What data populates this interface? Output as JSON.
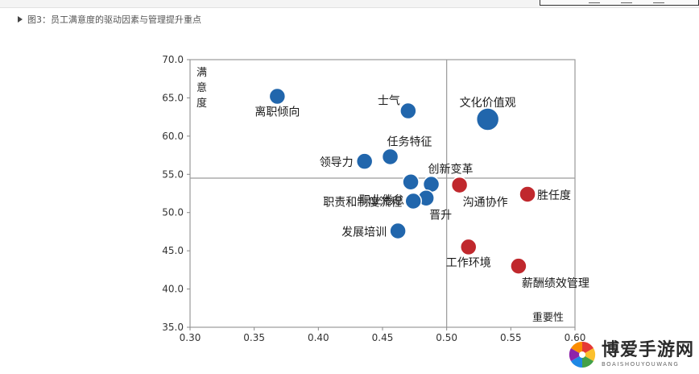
{
  "caption": "图3：员工满意度的驱动因素与管理提升重点",
  "watermark": {
    "title": "博爱手游网",
    "subtitle": "BOAISHOUYOUWANG"
  },
  "chart_data": {
    "type": "scatter",
    "title": "",
    "xlabel": "重要性",
    "ylabel": "满意度",
    "xlim": [
      0.3,
      0.6
    ],
    "ylim": [
      35.0,
      70.0
    ],
    "x_ticks": [
      "0.30",
      "0.35",
      "0.40",
      "0.45",
      "0.50",
      "0.55",
      "0.60"
    ],
    "y_ticks": [
      "35.0",
      "40.0",
      "45.0",
      "50.0",
      "55.0",
      "60.0",
      "65.0",
      "70.0"
    ],
    "reference_lines": {
      "x": 0.5,
      "y": 54.5
    },
    "grid": false,
    "colors": {
      "blue": "#2166ac",
      "red": "#c0282d"
    },
    "points": [
      {
        "label": "离职倾向",
        "x": 0.368,
        "y": 65.2,
        "size": 1.0,
        "color": "blue",
        "label_pos": "below"
      },
      {
        "label": "士气",
        "x": 0.47,
        "y": 63.3,
        "size": 1.0,
        "color": "blue",
        "label_pos": "upper-left"
      },
      {
        "label": "文化价值观",
        "x": 0.532,
        "y": 62.2,
        "size": 1.4,
        "color": "blue",
        "label_pos": "above"
      },
      {
        "label": "任务特征",
        "x": 0.456,
        "y": 57.3,
        "size": 1.0,
        "color": "blue",
        "label_pos": "upper-right"
      },
      {
        "label": "领导力",
        "x": 0.436,
        "y": 56.7,
        "size": 1.0,
        "color": "blue",
        "label_pos": "left"
      },
      {
        "label": "创新变革",
        "x": 0.488,
        "y": 53.7,
        "size": 1.0,
        "color": "blue",
        "label_pos": "upper-right"
      },
      {
        "label": "职业倦怠",
        "x": 0.472,
        "y": 54.0,
        "size": 1.0,
        "color": "blue",
        "label_pos": "lower-left"
      },
      {
        "label": "晋升",
        "x": 0.484,
        "y": 51.9,
        "size": 1.0,
        "color": "blue",
        "label_pos": "lower-right"
      },
      {
        "label": "职责和制度流程",
        "x": 0.474,
        "y": 51.5,
        "size": 1.0,
        "color": "blue",
        "label_pos": "left"
      },
      {
        "label": "发展培训",
        "x": 0.462,
        "y": 47.6,
        "size": 1.0,
        "color": "blue",
        "label_pos": "left"
      },
      {
        "label": "沟通协作",
        "x": 0.51,
        "y": 53.6,
        "size": 1.0,
        "color": "red",
        "label_pos": "lower-right"
      },
      {
        "label": "胜任度",
        "x": 0.563,
        "y": 52.4,
        "size": 1.0,
        "color": "red",
        "label_pos": "right"
      },
      {
        "label": "工作环境",
        "x": 0.517,
        "y": 45.5,
        "size": 1.0,
        "color": "red",
        "label_pos": "below"
      },
      {
        "label": "薪酬绩效管理",
        "x": 0.556,
        "y": 43.0,
        "size": 1.0,
        "color": "red",
        "label_pos": "lower-right"
      }
    ]
  }
}
